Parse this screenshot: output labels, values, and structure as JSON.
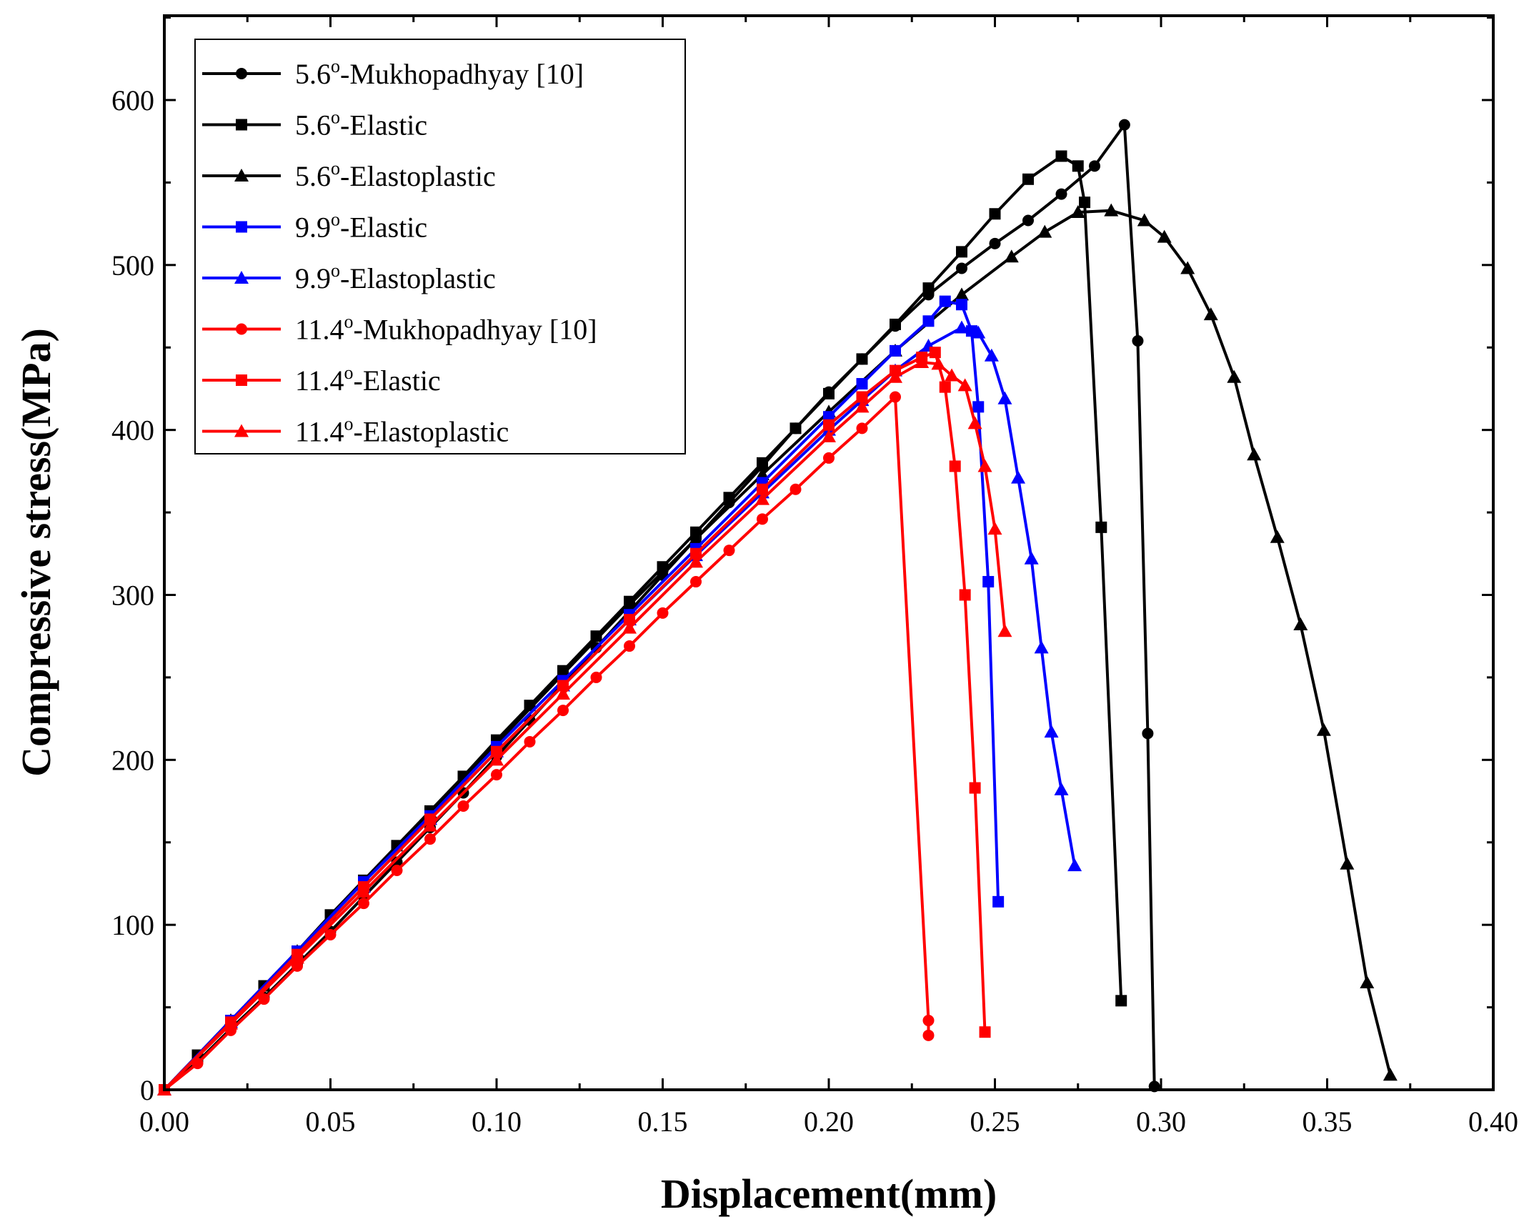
{
  "chart_data": {
    "type": "line",
    "title": "",
    "xlabel": "Displacement(mm)",
    "ylabel": "Compressive stress(MPa)",
    "xlim": [
      0,
      0.4
    ],
    "ylim": [
      0,
      650
    ],
    "xticks": [
      "0.00",
      "0.05",
      "0.10",
      "0.15",
      "0.20",
      "0.25",
      "0.30",
      "0.35",
      "0.40"
    ],
    "yticks": [
      "0",
      "100",
      "200",
      "300",
      "400",
      "500",
      "600"
    ],
    "grid": false,
    "legend_position": "top-left",
    "series": [
      {
        "name": "5.6",
        "suffix": "-Mukhopadhyay [10]",
        "color": "#000000",
        "marker": "circle",
        "x": [
          0,
          0.01,
          0.02,
          0.03,
          0.04,
          0.05,
          0.06,
          0.07,
          0.08,
          0.09,
          0.1,
          0.11,
          0.12,
          0.13,
          0.14,
          0.15,
          0.16,
          0.17,
          0.18,
          0.19,
          0.2,
          0.21,
          0.22,
          0.23,
          0.24,
          0.25,
          0.26,
          0.27,
          0.28,
          0.289,
          0.293,
          0.296,
          0.298
        ],
        "y": [
          0,
          17,
          37,
          56,
          76,
          96,
          117,
          138,
          159,
          180,
          202,
          224,
          246,
          268,
          290,
          312,
          334,
          356,
          378,
          401,
          423,
          443,
          463,
          482,
          498,
          513,
          527,
          543,
          560,
          585,
          454,
          216,
          2
        ]
      },
      {
        "name": "5.6",
        "suffix": "-Elastic",
        "color": "#000000",
        "marker": "square",
        "x": [
          0,
          0.01,
          0.02,
          0.03,
          0.04,
          0.05,
          0.06,
          0.07,
          0.08,
          0.09,
          0.1,
          0.11,
          0.12,
          0.13,
          0.14,
          0.15,
          0.16,
          0.17,
          0.18,
          0.19,
          0.2,
          0.21,
          0.22,
          0.23,
          0.24,
          0.25,
          0.26,
          0.27,
          0.275,
          0.277,
          0.282,
          0.288
        ],
        "y": [
          0,
          21,
          42,
          63,
          84,
          106,
          127,
          148,
          169,
          190,
          212,
          233,
          254,
          275,
          296,
          317,
          338,
          359,
          380,
          401,
          422,
          443,
          464,
          486,
          508,
          531,
          552,
          566,
          560,
          538,
          341,
          54
        ]
      },
      {
        "name": "5.6",
        "suffix": "-Elastoplastic",
        "color": "#000000",
        "marker": "triangle",
        "x": [
          0,
          0.02,
          0.04,
          0.06,
          0.08,
          0.1,
          0.12,
          0.14,
          0.16,
          0.18,
          0.2,
          0.22,
          0.24,
          0.255,
          0.265,
          0.275,
          0.285,
          0.295,
          0.301,
          0.308,
          0.315,
          0.322,
          0.328,
          0.335,
          0.342,
          0.349,
          0.356,
          0.362,
          0.369
        ],
        "y": [
          0,
          42,
          84,
          126,
          168,
          210,
          252,
          294,
          334,
          373,
          411,
          448,
          482,
          505,
          520,
          532,
          533,
          527,
          517,
          498,
          470,
          432,
          385,
          335,
          282,
          218,
          137,
          65,
          9
        ]
      },
      {
        "name": "9.9",
        "suffix": "-Elastic",
        "color": "#0000ff",
        "marker": "square",
        "x": [
          0,
          0.02,
          0.04,
          0.06,
          0.08,
          0.1,
          0.12,
          0.14,
          0.16,
          0.18,
          0.2,
          0.21,
          0.22,
          0.23,
          0.235,
          0.24,
          0.243,
          0.245,
          0.248,
          0.251
        ],
        "y": [
          0,
          42,
          84,
          126,
          166,
          208,
          248,
          288,
          328,
          368,
          408,
          428,
          448,
          466,
          478,
          476,
          460,
          414,
          308,
          114
        ]
      },
      {
        "name": "9.9",
        "suffix": "-Elastoplastic",
        "color": "#0000ff",
        "marker": "triangle",
        "x": [
          0,
          0.02,
          0.04,
          0.06,
          0.08,
          0.1,
          0.12,
          0.14,
          0.16,
          0.18,
          0.2,
          0.21,
          0.22,
          0.23,
          0.24,
          0.245,
          0.249,
          0.253,
          0.257,
          0.261,
          0.264,
          0.267,
          0.27,
          0.274
        ],
        "y": [
          0,
          41,
          82,
          123,
          164,
          205,
          245,
          285,
          324,
          362,
          400,
          418,
          436,
          451,
          462,
          459,
          445,
          419,
          371,
          322,
          268,
          217,
          182,
          136
        ]
      },
      {
        "name": "11.4",
        "suffix": "-Mukhopadhyay [10]",
        "color": "#ff0000",
        "marker": "circle",
        "x": [
          0,
          0.01,
          0.02,
          0.03,
          0.04,
          0.05,
          0.06,
          0.07,
          0.08,
          0.09,
          0.1,
          0.11,
          0.12,
          0.13,
          0.14,
          0.15,
          0.16,
          0.17,
          0.18,
          0.19,
          0.2,
          0.21,
          0.22,
          0.23,
          0.23
        ],
        "y": [
          0,
          16,
          36,
          55,
          75,
          94,
          113,
          133,
          152,
          172,
          191,
          211,
          230,
          250,
          269,
          289,
          308,
          327,
          346,
          364,
          383,
          401,
          420,
          42,
          33
        ]
      },
      {
        "name": "11.4",
        "suffix": "-Elastic",
        "color": "#ff0000",
        "marker": "square",
        "x": [
          0,
          0.02,
          0.04,
          0.06,
          0.08,
          0.1,
          0.12,
          0.14,
          0.16,
          0.18,
          0.2,
          0.21,
          0.22,
          0.228,
          0.232,
          0.235,
          0.238,
          0.241,
          0.244,
          0.247
        ],
        "y": [
          0,
          41,
          82,
          123,
          164,
          205,
          245,
          285,
          325,
          364,
          403,
          420,
          436,
          444,
          447,
          426,
          378,
          300,
          183,
          35
        ]
      },
      {
        "name": "11.4",
        "suffix": "-Elastoplastic",
        "color": "#ff0000",
        "marker": "triangle",
        "x": [
          0,
          0.02,
          0.04,
          0.06,
          0.08,
          0.1,
          0.12,
          0.14,
          0.16,
          0.18,
          0.2,
          0.21,
          0.22,
          0.228,
          0.233,
          0.237,
          0.241,
          0.244,
          0.247,
          0.25,
          0.253
        ],
        "y": [
          0,
          40,
          80,
          120,
          160,
          200,
          240,
          280,
          320,
          358,
          396,
          414,
          432,
          441,
          440,
          433,
          427,
          404,
          378,
          340,
          278
        ]
      }
    ]
  }
}
